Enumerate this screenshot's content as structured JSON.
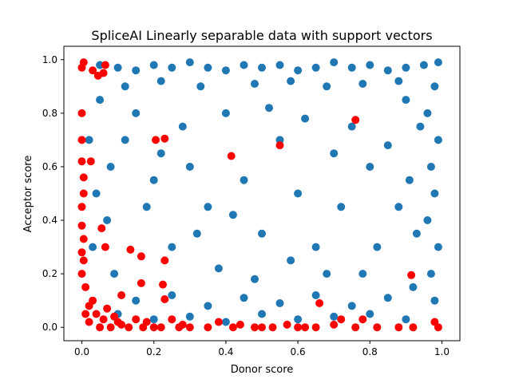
{
  "chart_data": {
    "type": "scatter",
    "title": "SpliceAI Linearly separable data with support vectors",
    "xlabel": "Donor score",
    "ylabel": "Acceptor score",
    "xlim": [
      -0.05,
      1.05
    ],
    "ylim": [
      -0.05,
      1.05
    ],
    "xticks": [
      "0.0",
      "0.2",
      "0.4",
      "0.6",
      "0.8",
      "1.0"
    ],
    "yticks": [
      "0.0",
      "0.2",
      "0.4",
      "0.6",
      "0.8",
      "1.0"
    ],
    "grid": false,
    "legend": "none",
    "series": [
      {
        "color": "#1f77b4",
        "points": [
          [
            0.05,
            0.98
          ],
          [
            0.1,
            0.97
          ],
          [
            0.15,
            0.96
          ],
          [
            0.2,
            0.98
          ],
          [
            0.25,
            0.97
          ],
          [
            0.3,
            0.99
          ],
          [
            0.35,
            0.97
          ],
          [
            0.4,
            0.96
          ],
          [
            0.45,
            0.98
          ],
          [
            0.5,
            0.97
          ],
          [
            0.55,
            0.98
          ],
          [
            0.6,
            0.96
          ],
          [
            0.65,
            0.97
          ],
          [
            0.7,
            0.99
          ],
          [
            0.75,
            0.97
          ],
          [
            0.8,
            0.98
          ],
          [
            0.85,
            0.96
          ],
          [
            0.9,
            0.97
          ],
          [
            0.95,
            0.98
          ],
          [
            0.99,
            0.99
          ],
          [
            0.12,
            0.9
          ],
          [
            0.22,
            0.92
          ],
          [
            0.33,
            0.9
          ],
          [
            0.48,
            0.91
          ],
          [
            0.58,
            0.92
          ],
          [
            0.68,
            0.9
          ],
          [
            0.78,
            0.91
          ],
          [
            0.88,
            0.92
          ],
          [
            0.98,
            0.1
          ],
          [
            0.97,
            0.2
          ],
          [
            0.99,
            0.3
          ],
          [
            0.96,
            0.4
          ],
          [
            0.98,
            0.5
          ],
          [
            0.97,
            0.6
          ],
          [
            0.99,
            0.7
          ],
          [
            0.96,
            0.8
          ],
          [
            0.98,
            0.9
          ],
          [
            0.92,
            0.15
          ],
          [
            0.93,
            0.35
          ],
          [
            0.91,
            0.55
          ],
          [
            0.94,
            0.75
          ],
          [
            0.9,
            0.85
          ],
          [
            0.1,
            0.05
          ],
          [
            0.2,
            0.03
          ],
          [
            0.3,
            0.04
          ],
          [
            0.4,
            0.02
          ],
          [
            0.5,
            0.05
          ],
          [
            0.6,
            0.03
          ],
          [
            0.7,
            0.04
          ],
          [
            0.8,
            0.05
          ],
          [
            0.9,
            0.03
          ],
          [
            0.15,
            0.1
          ],
          [
            0.25,
            0.12
          ],
          [
            0.35,
            0.08
          ],
          [
            0.45,
            0.11
          ],
          [
            0.55,
            0.09
          ],
          [
            0.65,
            0.12
          ],
          [
            0.75,
            0.08
          ],
          [
            0.85,
            0.11
          ],
          [
            0.03,
            0.3
          ],
          [
            0.04,
            0.5
          ],
          [
            0.02,
            0.7
          ],
          [
            0.05,
            0.85
          ],
          [
            0.08,
            0.6
          ],
          [
            0.07,
            0.4
          ],
          [
            0.09,
            0.2
          ],
          [
            0.3,
            0.6
          ],
          [
            0.35,
            0.45
          ],
          [
            0.45,
            0.55
          ],
          [
            0.5,
            0.35
          ],
          [
            0.55,
            0.7
          ],
          [
            0.6,
            0.5
          ],
          [
            0.65,
            0.3
          ],
          [
            0.7,
            0.65
          ],
          [
            0.25,
            0.3
          ],
          [
            0.28,
            0.75
          ],
          [
            0.4,
            0.8
          ],
          [
            0.52,
            0.82
          ],
          [
            0.62,
            0.78
          ],
          [
            0.72,
            0.45
          ],
          [
            0.8,
            0.6
          ],
          [
            0.82,
            0.3
          ],
          [
            0.38,
            0.22
          ],
          [
            0.48,
            0.18
          ],
          [
            0.58,
            0.25
          ],
          [
            0.68,
            0.2
          ],
          [
            0.18,
            0.45
          ],
          [
            0.2,
            0.55
          ],
          [
            0.22,
            0.65
          ],
          [
            0.42,
            0.42
          ],
          [
            0.32,
            0.35
          ],
          [
            0.75,
            0.75
          ],
          [
            0.85,
            0.68
          ],
          [
            0.88,
            0.45
          ],
          [
            0.78,
            0.2
          ],
          [
            0.15,
            0.8
          ],
          [
            0.12,
            0.7
          ]
        ]
      },
      {
        "color": "#ff0000",
        "points": [
          [
            0.76,
            0.775
          ],
          [
            0.55,
            0.68
          ],
          [
            0.415,
            0.64
          ],
          [
            0.205,
            0.7
          ],
          [
            0.23,
            0.705
          ],
          [
            0.0,
            0.8
          ],
          [
            0.0,
            0.7
          ],
          [
            0.0,
            0.62
          ],
          [
            0.0,
            0.45
          ],
          [
            0.0,
            0.38
          ],
          [
            0.0,
            0.28
          ],
          [
            0.0,
            0.2
          ],
          [
            0.0,
            0.97
          ],
          [
            0.005,
            0.99
          ],
          [
            0.03,
            0.96
          ],
          [
            0.06,
            0.95
          ],
          [
            0.065,
            0.98
          ],
          [
            0.045,
            0.94
          ],
          [
            0.055,
            0.37
          ],
          [
            0.065,
            0.3
          ],
          [
            0.135,
            0.29
          ],
          [
            0.165,
            0.265
          ],
          [
            0.23,
            0.25
          ],
          [
            0.225,
            0.16
          ],
          [
            0.165,
            0.165
          ],
          [
            0.11,
            0.12
          ],
          [
            0.23,
            0.105
          ],
          [
            0.915,
            0.195
          ],
          [
            0.66,
            0.09
          ],
          [
            0.72,
            0.03
          ],
          [
            0.78,
            0.03
          ],
          [
            0.76,
            0.0
          ],
          [
            0.82,
            0.0
          ],
          [
            0.88,
            0.0
          ],
          [
            0.92,
            0.0
          ],
          [
            0.99,
            0.0
          ],
          [
            0.98,
            0.02
          ],
          [
            0.6,
            0.0
          ],
          [
            0.62,
            0.0
          ],
          [
            0.65,
            0.0
          ],
          [
            0.5,
            0.0
          ],
          [
            0.48,
            0.0
          ],
          [
            0.42,
            0.0
          ],
          [
            0.35,
            0.0
          ],
          [
            0.3,
            0.0
          ],
          [
            0.27,
            0.0
          ],
          [
            0.2,
            0.0
          ],
          [
            0.17,
            0.0
          ],
          [
            0.13,
            0.0
          ],
          [
            0.08,
            0.0
          ],
          [
            0.05,
            0.0
          ],
          [
            0.02,
            0.02
          ],
          [
            0.04,
            0.05
          ],
          [
            0.06,
            0.03
          ],
          [
            0.1,
            0.02
          ],
          [
            0.03,
            0.1
          ],
          [
            0.01,
            0.15
          ],
          [
            0.02,
            0.08
          ],
          [
            0.07,
            0.07
          ],
          [
            0.09,
            0.04
          ],
          [
            0.11,
            0.01
          ],
          [
            0.15,
            0.03
          ],
          [
            0.18,
            0.02
          ],
          [
            0.22,
            0.0
          ],
          [
            0.25,
            0.03
          ],
          [
            0.28,
            0.01
          ],
          [
            0.38,
            0.02
          ],
          [
            0.44,
            0.01
          ],
          [
            0.53,
            0.0
          ],
          [
            0.57,
            0.01
          ],
          [
            0.7,
            0.01
          ],
          [
            0.01,
            0.05
          ],
          [
            0.005,
            0.25
          ],
          [
            0.005,
            0.33
          ],
          [
            0.005,
            0.5
          ],
          [
            0.005,
            0.56
          ],
          [
            0.025,
            0.62
          ]
        ]
      }
    ]
  }
}
